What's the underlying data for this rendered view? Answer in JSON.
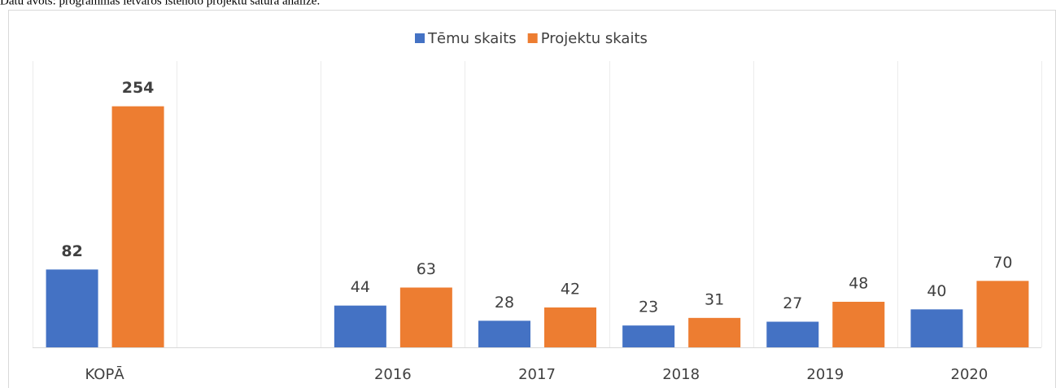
{
  "source_note": "Datu avots: programmas ietvaros īstenoto projektu satura analīze.",
  "chart_data": {
    "type": "bar",
    "categories": [
      "KOPĀ",
      null,
      "2016",
      "2017",
      "2018",
      "2019",
      "2020"
    ],
    "series": [
      {
        "name": "Tēmu skaits",
        "color": "#4472c4",
        "values": [
          82,
          null,
          44,
          28,
          23,
          27,
          40
        ]
      },
      {
        "name": "Projektu skaits",
        "color": "#ed7d31",
        "values": [
          254,
          null,
          63,
          42,
          31,
          48,
          70
        ]
      }
    ],
    "ylim": [
      0,
      300
    ],
    "legend": "top"
  }
}
